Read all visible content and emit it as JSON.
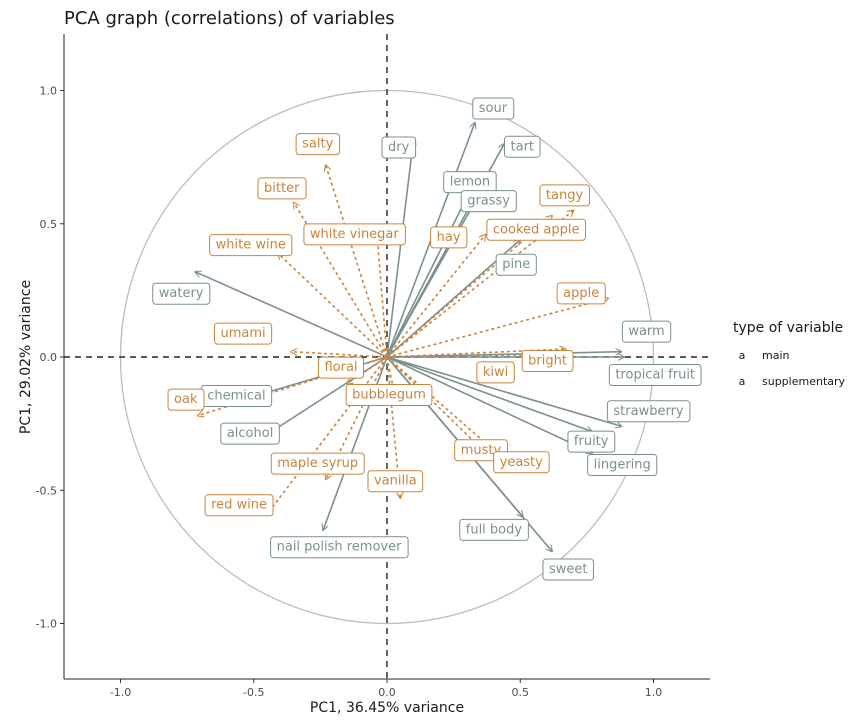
{
  "chart_data": {
    "type": "scatter",
    "title": "PCA graph (correlations) of variables",
    "xlabel": "PC1, 36.45% variance",
    "ylabel": "PC1, 29.02% variance",
    "xlim": [
      -1.2,
      1.22
    ],
    "ylim": [
      -1.2,
      1.22
    ],
    "x_ticks": [
      "-1.0",
      "-0.5",
      "0.0",
      "0.5",
      "1.0"
    ],
    "y_ticks": [
      "1.0",
      "0.5",
      "0.0",
      "-0.5",
      "-1.0"
    ],
    "legend": {
      "title": "type of variable",
      "placement": "right",
      "glyph": "a",
      "entries": [
        "main",
        "supplementary"
      ]
    },
    "colors": {
      "main": "#7a918c",
      "supplementary": "#c9843d"
    },
    "series": [
      {
        "name": "main",
        "points": [
          {
            "label": "sour",
            "x": 0.33,
            "y": 0.88
          },
          {
            "label": "dry",
            "x": 0.1,
            "y": 0.82
          },
          {
            "label": "lemon",
            "x": 0.33,
            "y": 0.66
          },
          {
            "label": "tart",
            "x": 0.44,
            "y": 0.8
          },
          {
            "label": "grassy",
            "x": 0.34,
            "y": 0.6
          },
          {
            "label": "pine",
            "x": 0.5,
            "y": 0.44
          },
          {
            "label": "watery",
            "x": -0.72,
            "y": 0.32
          },
          {
            "label": "warm",
            "x": 0.88,
            "y": 0.02
          },
          {
            "label": "tropical fruit",
            "x": 0.89,
            "y": 0.0
          },
          {
            "label": "strawberry",
            "x": 0.88,
            "y": -0.26
          },
          {
            "label": "fruity",
            "x": 0.77,
            "y": -0.28
          },
          {
            "label": "lingering",
            "x": 0.77,
            "y": -0.36
          },
          {
            "label": "sweet",
            "x": 0.62,
            "y": -0.73
          },
          {
            "label": "full body",
            "x": 0.51,
            "y": -0.6
          },
          {
            "label": "nail polish remover",
            "x": -0.24,
            "y": -0.65
          },
          {
            "label": "alcohol",
            "x": -0.48,
            "y": -0.31
          },
          {
            "label": "chemical",
            "x": -0.61,
            "y": -0.18
          }
        ]
      },
      {
        "name": "supplementary",
        "points": [
          {
            "label": "salty",
            "x": -0.23,
            "y": 0.72
          },
          {
            "label": "bitter",
            "x": -0.35,
            "y": 0.58
          },
          {
            "label": "white vinegar",
            "x": -0.04,
            "y": 0.49
          },
          {
            "label": "hay",
            "x": 0.37,
            "y": 0.46
          },
          {
            "label": "tangy",
            "x": 0.7,
            "y": 0.55
          },
          {
            "label": "cooked apple",
            "x": 0.62,
            "y": 0.53
          },
          {
            "label": "apple",
            "x": 0.83,
            "y": 0.22
          },
          {
            "label": "bright",
            "x": 0.67,
            "y": 0.03
          },
          {
            "label": "kiwi",
            "x": 0.64,
            "y": 0.01
          },
          {
            "label": "white wine",
            "x": -0.41,
            "y": 0.39
          },
          {
            "label": "umami",
            "x": -0.36,
            "y": 0.02
          },
          {
            "label": "floral",
            "x": -0.15,
            "y": -0.1
          },
          {
            "label": "oak",
            "x": -0.71,
            "y": -0.22
          },
          {
            "label": "bubblegum",
            "x": 0.03,
            "y": -0.15
          },
          {
            "label": "musty",
            "x": 0.36,
            "y": -0.35
          },
          {
            "label": "yeasty",
            "x": 0.47,
            "y": -0.41
          },
          {
            "label": "maple syrup",
            "x": -0.23,
            "y": -0.46
          },
          {
            "label": "red wine",
            "x": -0.45,
            "y": -0.59
          },
          {
            "label": "vanilla",
            "x": 0.05,
            "y": -0.53
          }
        ]
      }
    ]
  }
}
